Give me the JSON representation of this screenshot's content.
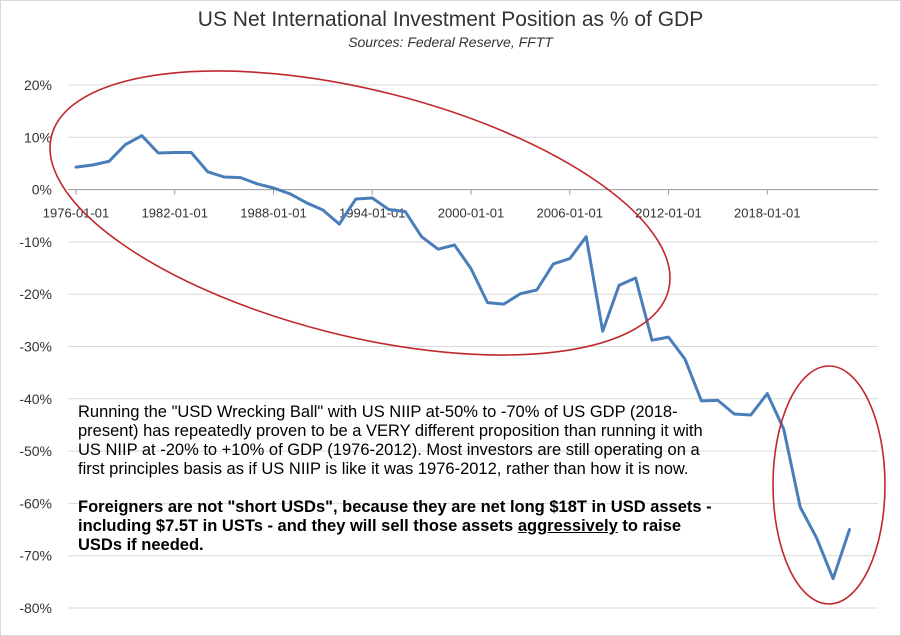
{
  "chart_data": {
    "type": "line",
    "title": "US Net International Investment Position as % of GDP",
    "subtitle": "Sources:  Federal Reserve, FFTT",
    "y_ticks": [
      "20%",
      "10%",
      "0%",
      "-10%",
      "-20%",
      "-30%",
      "-40%",
      "-50%",
      "-60%",
      "-70%",
      "-80%"
    ],
    "x_ticks": [
      "1976-01-01",
      "1982-01-01",
      "1988-01-01",
      "1994-01-01",
      "2000-01-01",
      "2006-01-01",
      "2012-01-01",
      "2018-01-01"
    ],
    "ylim": [
      -80,
      20
    ],
    "xlim": [
      1976,
      2024
    ],
    "grid": true,
    "line_color": "#4a7ebb",
    "annotation_color": "#c0282d",
    "series": [
      {
        "points": [
          [
            1976,
            4.3
          ],
          [
            1977,
            4.7
          ],
          [
            1978,
            5.4
          ],
          [
            1979,
            8.6
          ],
          [
            1980,
            10.3
          ],
          [
            1981,
            7.0
          ],
          [
            1982,
            7.1
          ],
          [
            1983,
            7.1
          ],
          [
            1984,
            3.4
          ],
          [
            1985,
            2.4
          ],
          [
            1986,
            2.3
          ],
          [
            1987,
            1.1
          ],
          [
            1988,
            0.3
          ],
          [
            1989,
            -0.8
          ],
          [
            1990,
            -2.5
          ],
          [
            1991,
            -3.9
          ],
          [
            1992,
            -6.6
          ],
          [
            1993,
            -1.8
          ],
          [
            1994,
            -1.6
          ],
          [
            1995,
            -3.8
          ],
          [
            1996,
            -4.2
          ],
          [
            1997,
            -9.0
          ],
          [
            1998,
            -11.4
          ],
          [
            1999,
            -10.6
          ],
          [
            2000,
            -15.1
          ],
          [
            2001,
            -21.6
          ],
          [
            2002,
            -21.9
          ],
          [
            2003,
            -19.9
          ],
          [
            2004,
            -19.2
          ],
          [
            2005,
            -14.2
          ],
          [
            2006,
            -13.2
          ],
          [
            2007,
            -9.0
          ],
          [
            2008,
            -27.1
          ],
          [
            2009,
            -18.3
          ],
          [
            2010,
            -16.9
          ],
          [
            2011,
            -28.8
          ],
          [
            2012,
            -28.2
          ],
          [
            2013,
            -32.4
          ],
          [
            2014,
            -40.4
          ],
          [
            2015,
            -40.3
          ],
          [
            2016,
            -42.9
          ],
          [
            2017,
            -43.1
          ],
          [
            2018,
            -39.0
          ],
          [
            2019,
            -45.8
          ],
          [
            2020,
            -60.7
          ],
          [
            2021,
            -66.6
          ],
          [
            2022,
            -74.4
          ],
          [
            2023,
            -65.0
          ]
        ]
      }
    ]
  },
  "annotation": {
    "paragraph1": "Running the \"USD Wrecking Ball\" with US NIIP at-50% to -70% of US GDP (2018-present) has repeatedly proven to be a VERY different proposition than running it with US NIIP at -20% to +10% of GDP (1976-2012).  Most investors are still operating on a first principles basis as if US NIIP is like it was 1976-2012, rather than how it is now.",
    "paragraph2_before": "Foreigners are not \"short USDs\", because they are net long $18T in USD assets - including $7.5T in USTs - and they will sell those assets ",
    "paragraph2_underlined": "aggressively",
    "paragraph2_after": " to raise USDs if needed."
  }
}
